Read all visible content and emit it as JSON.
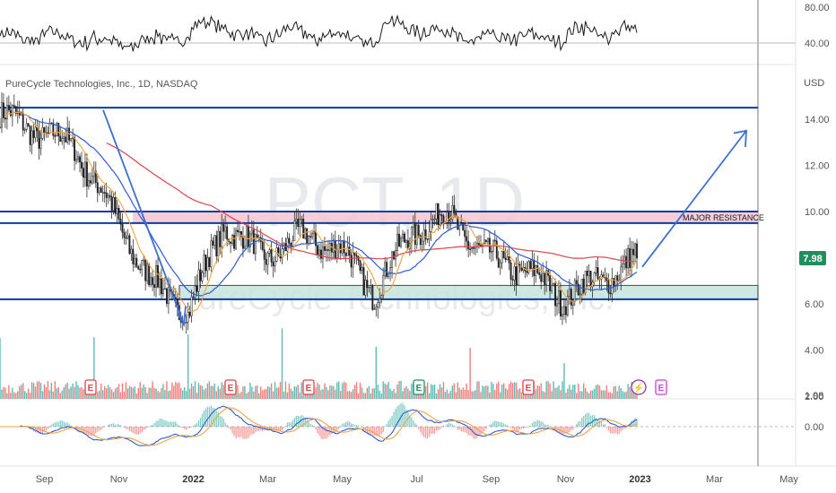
{
  "legend_text": "PureCycle Technologies, Inc., 1D, NASDAQ",
  "watermark": {
    "ticker": "PCT, 1D",
    "company": "PureCycle Technologies, Inc."
  },
  "price_axis": {
    "currency": "USD",
    "labels": [
      "14.00",
      "12.00",
      "10.00",
      "8.00",
      "6.00",
      "4.00",
      "2.00"
    ],
    "values": [
      14,
      12,
      10,
      8,
      6,
      4,
      2
    ]
  },
  "rsi_axis": {
    "labels": [
      "80.00",
      "40.00"
    ],
    "values": [
      80,
      40
    ]
  },
  "macd_axis": {
    "labels": [
      "1.98",
      "0.00"
    ],
    "values": [
      1.98,
      0
    ]
  },
  "x_axis": {
    "labels": [
      "Sep",
      "Nov",
      "2022",
      "Mar",
      "May",
      "Jul",
      "Sep",
      "Nov",
      "2023",
      "Mar",
      "May"
    ],
    "bold": [
      false,
      false,
      true,
      false,
      false,
      false,
      false,
      false,
      true,
      false,
      false
    ]
  },
  "last_price": {
    "value": 7.98,
    "label": "7.98",
    "color": "#1f8f5f"
  },
  "annotation": {
    "text": "MAJOR RESISTANCE"
  },
  "earnings_badges": {
    "label": "E",
    "count": 6
  },
  "dividend_badge": {
    "label": "⚡"
  },
  "future_earnings_badge": {
    "label": "E"
  },
  "colors": {
    "up": "#26a69a",
    "down": "#ef5350",
    "sma200": "#e0434a",
    "sma50": "#2e5bd6",
    "sma20": "#f2a33a",
    "level": "#0d3aa8",
    "resistance_zone": "#f6c4cf",
    "support_zone": "#c5e6dc",
    "arrow": "#3b6fd4"
  },
  "chart_data": {
    "type": "candlestick",
    "symbol": "PCT",
    "timeframe": "1D",
    "exchange": "NASDAQ",
    "x_axis_labels": [
      "Sep",
      "Nov",
      "2022",
      "Mar",
      "May",
      "Jul",
      "Sep",
      "Nov",
      "2023",
      "Mar",
      "May"
    ],
    "ylim": [
      1.8,
      16.5
    ],
    "price_path_months": [
      "2021-09",
      "2021-10",
      "2021-11",
      "2021-12",
      "2022-01",
      "2022-02",
      "2022-03",
      "2022-04",
      "2022-05",
      "2022-06",
      "2022-07",
      "2022-08",
      "2022-09",
      "2022-10",
      "2022-11",
      "2022-12",
      "2023-01",
      "2023-02"
    ],
    "price_path_close": [
      14.2,
      13.5,
      12.8,
      10.0,
      7.0,
      5.6,
      9.5,
      8.0,
      8.9,
      8.5,
      6.5,
      9.2,
      9.8,
      8.0,
      7.5,
      6.3,
      7.0,
      7.98
    ],
    "horizontal_levels": [
      14.5,
      10.0,
      9.5,
      6.2
    ],
    "resistance_zone": [
      9.5,
      10.0
    ],
    "support_zone": [
      6.2,
      6.8
    ],
    "last_price": 7.98,
    "projection": {
      "from": 7.6,
      "to": 13.5
    },
    "rsi_range": [
      30,
      80
    ],
    "macd_zero": 0.0
  }
}
